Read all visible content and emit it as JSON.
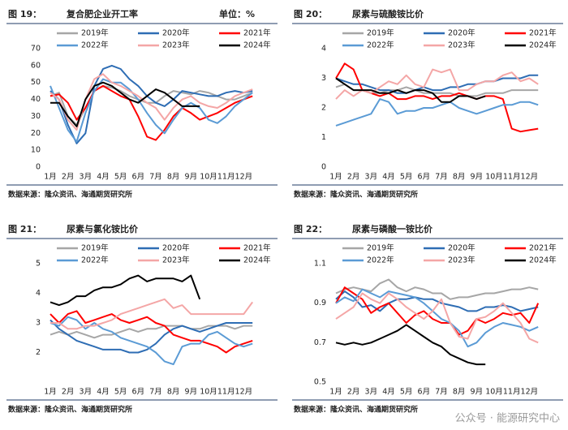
{
  "watermark": "公众号 · 能源研究中心",
  "chart_data": [
    {
      "type": "line",
      "figure": "图 19：",
      "title": "复合肥企业开工率",
      "unit": "单位：%",
      "source": "数据来源：隆众资讯、海通期货研究所",
      "legend": "top",
      "grid": false,
      "x": [
        1,
        1.5,
        2,
        2.5,
        3,
        3.5,
        4,
        4.5,
        5,
        5.5,
        6,
        6.5,
        7,
        7.5,
        8,
        8.5,
        9,
        9.5,
        10,
        10.5,
        11,
        11.5,
        12,
        12.5
      ],
      "xlim": [
        1,
        13
      ],
      "xticks": [
        {
          "value": 1,
          "label": "1月"
        },
        {
          "value": 2,
          "label": "2月"
        },
        {
          "value": 3,
          "label": "3月"
        },
        {
          "value": 4,
          "label": "4月"
        },
        {
          "value": 5,
          "label": "5月"
        },
        {
          "value": 6,
          "label": "6月"
        },
        {
          "value": 7,
          "label": "7月"
        },
        {
          "value": 8,
          "label": "8月"
        },
        {
          "value": 9,
          "label": "9月"
        },
        {
          "value": 10,
          "label": "10月"
        },
        {
          "value": 11,
          "label": "11月"
        },
        {
          "value": 12,
          "label": "12月"
        }
      ],
      "ylim": [
        0,
        70
      ],
      "yticks": [
        0,
        10,
        20,
        30,
        40,
        50,
        60,
        70
      ],
      "series": [
        {
          "name": "2019年",
          "color": "#a6a6a6",
          "values": [
            42,
            44,
            30,
            25,
            35,
            45,
            48,
            47,
            45,
            42,
            40,
            38,
            38,
            42,
            45,
            44,
            43,
            45,
            44,
            42,
            40,
            40,
            42,
            44
          ]
        },
        {
          "name": "2020年",
          "color": "#2e6db4",
          "values": [
            45,
            40,
            25,
            14,
            20,
            48,
            58,
            60,
            58,
            52,
            48,
            42,
            38,
            36,
            40,
            45,
            44,
            43,
            42,
            42,
            44,
            45,
            44,
            45
          ]
        },
        {
          "name": "2021年",
          "color": "#ff0000",
          "values": [
            42,
            43,
            38,
            28,
            35,
            45,
            48,
            45,
            42,
            40,
            30,
            18,
            16,
            22,
            30,
            35,
            32,
            28,
            30,
            32,
            35,
            38,
            40,
            42
          ]
        },
        {
          "name": "2022年",
          "color": "#5b9bd5",
          "values": [
            48,
            35,
            22,
            15,
            32,
            45,
            52,
            50,
            50,
            46,
            40,
            32,
            25,
            20,
            28,
            35,
            38,
            35,
            28,
            26,
            30,
            36,
            40,
            44
          ]
        },
        {
          "name": "2023年",
          "color": "#f4a6a6",
          "values": [
            44,
            40,
            28,
            22,
            40,
            52,
            55,
            50,
            48,
            45,
            42,
            38,
            35,
            28,
            35,
            40,
            42,
            38,
            36,
            35,
            38,
            42,
            44,
            46
          ]
        },
        {
          "name": "2024年",
          "color": "#000000",
          "values": [
            38,
            38,
            30,
            24,
            40,
            48,
            50,
            48,
            44,
            40,
            38,
            42,
            46,
            44,
            40,
            36,
            36,
            36,
            null,
            null,
            null,
            null,
            null,
            null
          ]
        }
      ]
    },
    {
      "type": "line",
      "figure": "图 20：",
      "title": "尿素与硫酸铵比价",
      "source": "数据来源：隆众资讯、海通期货研究所",
      "legend": "top",
      "grid": false,
      "x": [
        1,
        1.5,
        2,
        2.5,
        3,
        3.5,
        4,
        4.5,
        5,
        5.5,
        6,
        6.5,
        7,
        7.5,
        8,
        8.5,
        9,
        9.5,
        10,
        10.5,
        11,
        11.5,
        12,
        12.5
      ],
      "xlim": [
        1,
        13
      ],
      "xticks": [
        {
          "value": 1,
          "label": "1月"
        },
        {
          "value": 2,
          "label": "2月"
        },
        {
          "value": 3,
          "label": "3月"
        },
        {
          "value": 4,
          "label": "4月"
        },
        {
          "value": 5,
          "label": "5月"
        },
        {
          "value": 6,
          "label": "6月"
        },
        {
          "value": 7,
          "label": "7月"
        },
        {
          "value": 8,
          "label": "8月"
        },
        {
          "value": 9,
          "label": "9月"
        },
        {
          "value": 10,
          "label": "10月"
        },
        {
          "value": 11,
          "label": "11月"
        },
        {
          "value": 12,
          "label": "12月"
        }
      ],
      "ylim": [
        0,
        4
      ],
      "yticks": [
        0,
        1,
        2,
        3,
        4
      ],
      "series": [
        {
          "name": "2019年",
          "color": "#a6a6a6",
          "values": [
            2.7,
            2.8,
            2.6,
            2.6,
            2.5,
            2.5,
            2.6,
            2.6,
            2.7,
            2.6,
            2.5,
            2.5,
            2.5,
            2.5,
            2.4,
            2.4,
            2.4,
            2.5,
            2.5,
            2.5,
            2.6,
            2.6,
            2.6,
            2.6
          ]
        },
        {
          "name": "2020年",
          "color": "#2e6db4",
          "values": [
            3.0,
            2.9,
            2.8,
            2.8,
            2.7,
            2.6,
            2.6,
            2.5,
            2.5,
            2.6,
            2.7,
            2.6,
            2.6,
            2.7,
            2.7,
            2.8,
            2.8,
            2.9,
            2.9,
            3.0,
            3.0,
            3.0,
            3.1,
            3.1
          ]
        },
        {
          "name": "2021年",
          "color": "#ff0000",
          "values": [
            3.0,
            3.5,
            3.3,
            2.6,
            2.5,
            2.4,
            2.5,
            2.3,
            2.3,
            2.4,
            2.4,
            2.3,
            2.4,
            2.4,
            2.5,
            2.4,
            2.3,
            2.4,
            2.4,
            2.3,
            1.3,
            1.2,
            1.25,
            1.3
          ]
        },
        {
          "name": "2022年",
          "color": "#5b9bd5",
          "values": [
            1.4,
            1.5,
            1.6,
            1.7,
            1.8,
            2.3,
            2.2,
            1.8,
            1.9,
            1.9,
            2.0,
            2.0,
            2.1,
            2.2,
            2.0,
            1.9,
            1.8,
            1.9,
            2.0,
            2.1,
            2.1,
            2.2,
            2.2,
            2.1
          ]
        },
        {
          "name": "2023年",
          "color": "#f4a6a6",
          "values": [
            2.3,
            2.6,
            2.4,
            2.6,
            2.5,
            2.7,
            2.9,
            2.8,
            3.1,
            2.8,
            2.7,
            3.3,
            3.2,
            3.3,
            2.6,
            2.6,
            2.8,
            2.9,
            2.9,
            3.1,
            3.2,
            2.9,
            3.0,
            2.8
          ]
        },
        {
          "name": "2024年",
          "color": "#000000",
          "values": [
            3.0,
            2.8,
            2.6,
            2.6,
            2.6,
            2.5,
            2.5,
            2.6,
            2.5,
            2.6,
            2.6,
            2.5,
            2.2,
            2.2,
            2.4,
            2.4,
            2.3,
            2.4,
            null,
            null,
            null,
            null,
            null,
            null
          ]
        }
      ]
    },
    {
      "type": "line",
      "figure": "图 21：",
      "title": "尿素与氯化铵比价",
      "source": "数据来源：隆众资讯、海通期货研究所",
      "legend": "top",
      "grid": false,
      "x": [
        1,
        1.5,
        2,
        2.5,
        3,
        3.5,
        4,
        4.5,
        5,
        5.5,
        6,
        6.5,
        7,
        7.5,
        8,
        8.5,
        9,
        9.5,
        10,
        10.5,
        11,
        11.5,
        12,
        12.5
      ],
      "xlim": [
        1,
        13
      ],
      "xticks": [
        {
          "value": 1,
          "label": "1月"
        },
        {
          "value": 2,
          "label": "2月"
        },
        {
          "value": 3,
          "label": "3月"
        },
        {
          "value": 4,
          "label": "4月"
        },
        {
          "value": 5,
          "label": "5月"
        },
        {
          "value": 6,
          "label": "6月"
        },
        {
          "value": 7,
          "label": "7月"
        },
        {
          "value": 8,
          "label": "8月"
        },
        {
          "value": 9,
          "label": "9月"
        },
        {
          "value": 10,
          "label": "10月"
        },
        {
          "value": 11,
          "label": "11月"
        },
        {
          "value": 12,
          "label": "12月"
        }
      ],
      "ylim": [
        1,
        5
      ],
      "yticks": [
        2,
        3,
        4,
        5
      ],
      "series": [
        {
          "name": "2019年",
          "color": "#a6a6a6",
          "values": [
            2.6,
            2.7,
            2.6,
            2.7,
            2.6,
            2.5,
            2.6,
            2.6,
            2.7,
            2.8,
            2.7,
            2.8,
            2.8,
            2.9,
            2.9,
            2.9,
            2.8,
            2.8,
            2.9,
            2.9,
            2.9,
            2.8,
            2.9,
            2.9
          ]
        },
        {
          "name": "2020年",
          "color": "#2e6db4",
          "values": [
            3.1,
            2.8,
            2.6,
            2.4,
            2.3,
            2.2,
            2.1,
            2.1,
            2.1,
            2.0,
            2.0,
            2.1,
            2.3,
            2.6,
            2.8,
            2.9,
            2.8,
            2.7,
            2.8,
            2.9,
            3.0,
            3.0,
            3.0,
            3.0
          ]
        },
        {
          "name": "2021年",
          "color": "#ff0000",
          "values": [
            3.3,
            3.0,
            3.3,
            3.4,
            3.0,
            3.1,
            3.2,
            3.3,
            3.1,
            3.0,
            3.1,
            3.2,
            3.0,
            2.9,
            2.6,
            2.5,
            2.4,
            2.4,
            2.3,
            2.2,
            2.0,
            2.2,
            2.3,
            2.4
          ]
        },
        {
          "name": "2022年",
          "color": "#5b9bd5",
          "values": [
            3.0,
            2.9,
            3.2,
            3.1,
            2.8,
            3.0,
            2.8,
            2.7,
            2.5,
            2.4,
            2.3,
            2.2,
            2.0,
            1.7,
            1.6,
            2.2,
            2.3,
            2.3,
            2.6,
            2.7,
            2.5,
            2.3,
            2.2,
            2.3
          ]
        },
        {
          "name": "2023年",
          "color": "#f4a6a6",
          "values": [
            3.0,
            3.0,
            2.8,
            2.8,
            2.9,
            2.9,
            3.0,
            3.1,
            3.3,
            3.4,
            3.5,
            3.6,
            3.7,
            3.8,
            3.5,
            3.6,
            3.3,
            3.3,
            3.3,
            3.3,
            3.3,
            3.3,
            3.3,
            3.7
          ]
        },
        {
          "name": "2024年",
          "color": "#000000",
          "values": [
            3.7,
            3.6,
            3.7,
            3.9,
            3.9,
            4.1,
            4.2,
            4.2,
            4.3,
            4.5,
            4.6,
            4.4,
            4.5,
            4.5,
            4.5,
            4.4,
            4.6,
            3.8,
            null,
            null,
            null,
            null,
            null,
            null
          ]
        }
      ]
    },
    {
      "type": "line",
      "figure": "图 22：",
      "title": "尿素与磷酸一铵比价",
      "source": "数据来源：隆众资讯、海通期货研究所",
      "legend": "top",
      "grid": false,
      "x": [
        1,
        1.5,
        2,
        2.5,
        3,
        3.5,
        4,
        4.5,
        5,
        5.5,
        6,
        6.5,
        7,
        7.5,
        8,
        8.5,
        9,
        9.5,
        10,
        10.5,
        11,
        11.5,
        12,
        12.5
      ],
      "xlim": [
        1,
        13
      ],
      "xticks": [
        {
          "value": 1,
          "label": "1月"
        },
        {
          "value": 2,
          "label": "2月"
        },
        {
          "value": 3,
          "label": "3月"
        },
        {
          "value": 4,
          "label": "4月"
        },
        {
          "value": 5,
          "label": "5月"
        },
        {
          "value": 6,
          "label": "6月"
        },
        {
          "value": 7,
          "label": "7月"
        },
        {
          "value": 8,
          "label": "8月"
        },
        {
          "value": 9,
          "label": "9月"
        },
        {
          "value": 10,
          "label": "10月"
        },
        {
          "value": 11,
          "label": "11月"
        },
        {
          "value": 12,
          "label": "12月"
        }
      ],
      "ylim": [
        0.5,
        1.1
      ],
      "yticks": [
        0.5,
        0.7,
        0.9,
        1.1
      ],
      "series": [
        {
          "name": "2019年",
          "color": "#a6a6a6",
          "values": [
            0.95,
            0.97,
            0.98,
            0.97,
            0.96,
            1.0,
            1.02,
            0.98,
            0.96,
            0.98,
            0.97,
            0.95,
            0.95,
            0.92,
            0.93,
            0.93,
            0.94,
            0.95,
            0.95,
            0.96,
            0.97,
            0.97,
            0.98,
            0.97
          ]
        },
        {
          "name": "2020年",
          "color": "#2e6db4",
          "values": [
            0.92,
            0.96,
            0.93,
            0.88,
            0.89,
            0.86,
            0.9,
            0.92,
            0.92,
            0.93,
            0.92,
            0.92,
            0.9,
            0.89,
            0.88,
            0.86,
            0.86,
            0.88,
            0.88,
            0.89,
            0.88,
            0.86,
            0.87,
            0.88
          ]
        },
        {
          "name": "2021年",
          "color": "#ff0000",
          "values": [
            0.9,
            0.98,
            0.95,
            0.92,
            0.85,
            0.88,
            0.9,
            0.85,
            0.8,
            0.84,
            0.86,
            0.82,
            0.8,
            0.8,
            0.74,
            0.76,
            0.82,
            0.8,
            0.82,
            0.85,
            0.84,
            0.85,
            0.8,
            0.9
          ]
        },
        {
          "name": "2022年",
          "color": "#5b9bd5",
          "values": [
            0.9,
            0.93,
            0.91,
            0.97,
            0.95,
            0.93,
            0.96,
            0.95,
            0.94,
            0.93,
            0.9,
            0.86,
            0.82,
            0.8,
            0.76,
            0.68,
            0.7,
            0.75,
            0.78,
            0.8,
            0.79,
            0.78,
            0.76,
            0.78
          ]
        },
        {
          "name": "2023年",
          "color": "#f4a6a6",
          "values": [
            0.82,
            0.85,
            0.88,
            0.95,
            0.92,
            0.9,
            0.95,
            0.92,
            0.88,
            0.85,
            0.82,
            0.86,
            0.92,
            0.8,
            0.73,
            0.72,
            0.82,
            0.83,
            0.86,
            0.9,
            0.85,
            0.8,
            0.72,
            0.7
          ]
        },
        {
          "name": "2024年",
          "color": "#000000",
          "values": [
            0.7,
            0.69,
            0.7,
            0.69,
            0.7,
            0.72,
            0.74,
            0.76,
            0.79,
            0.76,
            0.73,
            0.7,
            0.68,
            0.64,
            0.62,
            0.6,
            0.59,
            0.59,
            null,
            null,
            null,
            null,
            null,
            null
          ]
        }
      ]
    }
  ]
}
